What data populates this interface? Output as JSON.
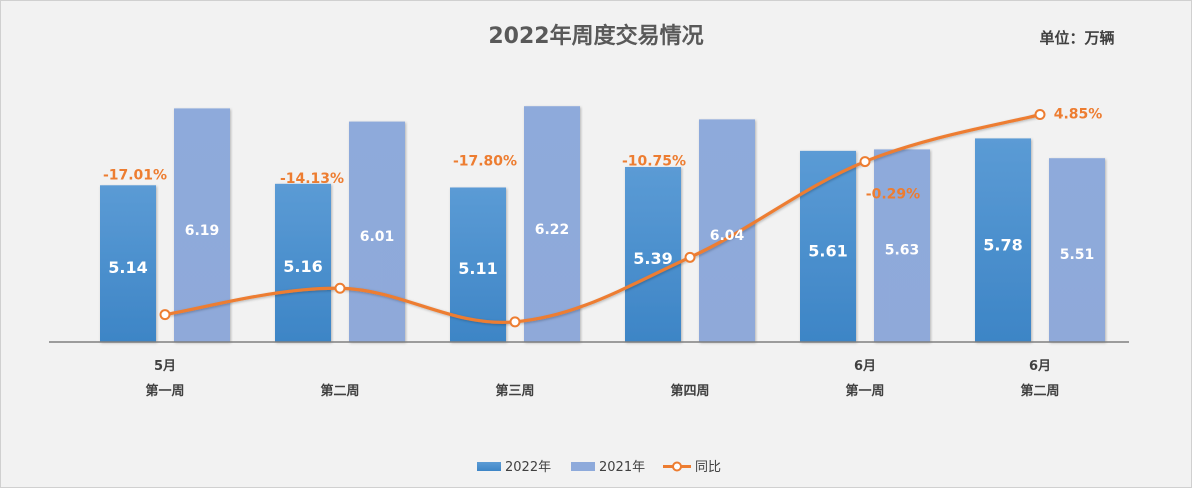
{
  "chart_data": {
    "type": "bar+line",
    "title": "2022年周度交易情况",
    "unit_label": "单位：万辆",
    "categories": [
      {
        "top": "5月",
        "bottom": "第一周"
      },
      {
        "top": "",
        "bottom": "第二周"
      },
      {
        "top": "",
        "bottom": "第三周"
      },
      {
        "top": "",
        "bottom": "第四周"
      },
      {
        "top": "6月",
        "bottom": "第一周"
      },
      {
        "top": "6月",
        "bottom": "第二周"
      }
    ],
    "series": [
      {
        "name": "2022年",
        "type": "bar",
        "color": "#4a8fd6",
        "values": [
          5.14,
          5.16,
          5.11,
          5.39,
          5.61,
          5.78
        ],
        "labels": [
          "5.14",
          "5.16",
          "5.11",
          "5.39",
          "5.61",
          "5.78"
        ]
      },
      {
        "name": "2021年",
        "type": "bar",
        "color": "#8eaadb",
        "values": [
          6.19,
          6.01,
          6.22,
          6.04,
          5.63,
          5.51
        ],
        "labels": [
          "6.19",
          "6.01",
          "6.22",
          "6.04",
          "5.63",
          "5.51"
        ]
      },
      {
        "name": "同比",
        "type": "line",
        "color": "#ed7d31",
        "values": [
          -17.01,
          -14.13,
          -17.8,
          -10.75,
          -0.29,
          4.85
        ],
        "labels": [
          "-17.01%",
          "-14.13%",
          "-17.80%",
          "-10.75%",
          "-0.29%",
          "4.85%"
        ]
      }
    ],
    "bar_axis_range": [
      3.0,
      6.25
    ],
    "line_axis_range": [
      -20,
      6
    ],
    "legend_position": "bottom-center",
    "grid": false
  }
}
